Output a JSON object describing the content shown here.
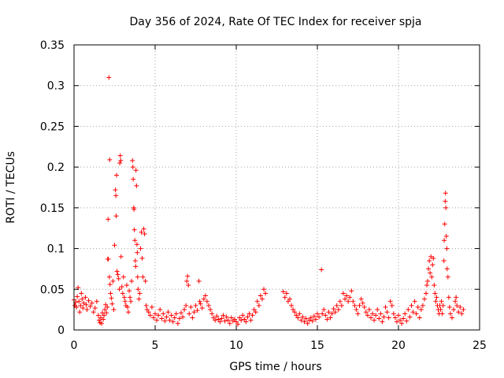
{
  "chart_data": {
    "type": "scatter",
    "title": "Day 356 of 2024, Rate Of TEC Index for receiver spja",
    "xlabel": "GPS time / hours",
    "ylabel": "ROTI / TECUs",
    "xlim": [
      0,
      25
    ],
    "ylim": [
      0,
      0.35
    ],
    "xticks": [
      0,
      5,
      10,
      15,
      20,
      25
    ],
    "xtick_labels": [
      "0",
      "5",
      "10",
      "15",
      "20",
      "25"
    ],
    "yticks": [
      0,
      0.05,
      0.1,
      0.15,
      0.2,
      0.25,
      0.3,
      0.35
    ],
    "ytick_labels": [
      "0",
      "0.05",
      "0.1",
      "0.15",
      "0.2",
      "0.25",
      "0.3",
      "0.35"
    ],
    "grid": true,
    "marker": "+",
    "series_color": "#ff0000",
    "series": [
      {
        "name": "ROTI",
        "points": [
          [
            0.0,
            0.037
          ],
          [
            0.05,
            0.03
          ],
          [
            0.1,
            0.034
          ],
          [
            0.15,
            0.028
          ],
          [
            0.2,
            0.041
          ],
          [
            0.25,
            0.052
          ],
          [
            0.3,
            0.035
          ],
          [
            0.35,
            0.022
          ],
          [
            0.4,
            0.03
          ],
          [
            0.45,
            0.045
          ],
          [
            0.5,
            0.038
          ],
          [
            0.55,
            0.027
          ],
          [
            0.6,
            0.033
          ],
          [
            0.7,
            0.04
          ],
          [
            0.75,
            0.031
          ],
          [
            0.8,
            0.025
          ],
          [
            0.9,
            0.036
          ],
          [
            1.0,
            0.029
          ],
          [
            1.1,
            0.033
          ],
          [
            1.2,
            0.022
          ],
          [
            1.3,
            0.027
          ],
          [
            1.4,
            0.035
          ],
          [
            1.5,
            0.018
          ],
          [
            1.55,
            0.012
          ],
          [
            1.6,
            0.009
          ],
          [
            1.65,
            0.015
          ],
          [
            1.7,
            0.008
          ],
          [
            1.75,
            0.021
          ],
          [
            1.8,
            0.013
          ],
          [
            1.85,
            0.018
          ],
          [
            1.9,
            0.025
          ],
          [
            1.95,
            0.031
          ],
          [
            2.0,
            0.021
          ],
          [
            2.05,
            0.028
          ],
          [
            2.08,
            0.087
          ],
          [
            2.1,
            0.136
          ],
          [
            2.12,
            0.087
          ],
          [
            2.15,
            0.31
          ],
          [
            2.18,
            0.065
          ],
          [
            2.2,
            0.209
          ],
          [
            2.22,
            0.056
          ],
          [
            2.25,
            0.045
          ],
          [
            2.3,
            0.039
          ],
          [
            2.35,
            0.032
          ],
          [
            2.4,
            0.06
          ],
          [
            2.45,
            0.025
          ],
          [
            2.5,
            0.104
          ],
          [
            2.55,
            0.172
          ],
          [
            2.58,
            0.165
          ],
          [
            2.6,
            0.14
          ],
          [
            2.62,
            0.19
          ],
          [
            2.65,
            0.072
          ],
          [
            2.7,
            0.068
          ],
          [
            2.75,
            0.063
          ],
          [
            2.8,
            0.05
          ],
          [
            2.82,
            0.205
          ],
          [
            2.85,
            0.214
          ],
          [
            2.88,
            0.208
          ],
          [
            2.9,
            0.09
          ],
          [
            2.95,
            0.053
          ],
          [
            3.0,
            0.045
          ],
          [
            3.05,
            0.065
          ],
          [
            3.1,
            0.04
          ],
          [
            3.15,
            0.035
          ],
          [
            3.2,
            0.03
          ],
          [
            3.25,
            0.055
          ],
          [
            3.3,
            0.028
          ],
          [
            3.35,
            0.022
          ],
          [
            3.4,
            0.048
          ],
          [
            3.45,
            0.04
          ],
          [
            3.5,
            0.035
          ],
          [
            3.55,
            0.06
          ],
          [
            3.6,
            0.208
          ],
          [
            3.63,
            0.2
          ],
          [
            3.65,
            0.185
          ],
          [
            3.68,
            0.15
          ],
          [
            3.7,
            0.148
          ],
          [
            3.72,
            0.123
          ],
          [
            3.75,
            0.11
          ],
          [
            3.78,
            0.085
          ],
          [
            3.8,
            0.078
          ],
          [
            3.82,
            0.196
          ],
          [
            3.85,
            0.177
          ],
          [
            3.88,
            0.105
          ],
          [
            3.9,
            0.095
          ],
          [
            3.92,
            0.065
          ],
          [
            3.95,
            0.05
          ],
          [
            4.0,
            0.038
          ],
          [
            4.05,
            0.045
          ],
          [
            4.1,
            0.1
          ],
          [
            4.15,
            0.12
          ],
          [
            4.2,
            0.088
          ],
          [
            4.25,
            0.065
          ],
          [
            4.3,
            0.124
          ],
          [
            4.35,
            0.118
          ],
          [
            4.4,
            0.06
          ],
          [
            4.45,
            0.03
          ],
          [
            4.5,
            0.025
          ],
          [
            4.6,
            0.022
          ],
          [
            4.7,
            0.018
          ],
          [
            4.8,
            0.028
          ],
          [
            4.9,
            0.015
          ],
          [
            5.0,
            0.02
          ],
          [
            5.1,
            0.012
          ],
          [
            5.2,
            0.018
          ],
          [
            5.3,
            0.025
          ],
          [
            5.4,
            0.014
          ],
          [
            5.5,
            0.02
          ],
          [
            5.6,
            0.011
          ],
          [
            5.7,
            0.016
          ],
          [
            5.8,
            0.022
          ],
          [
            5.9,
            0.012
          ],
          [
            6.0,
            0.018
          ],
          [
            6.1,
            0.01
          ],
          [
            6.2,
            0.015
          ],
          [
            6.3,
            0.02
          ],
          [
            6.4,
            0.008
          ],
          [
            6.5,
            0.014
          ],
          [
            6.6,
            0.021
          ],
          [
            6.7,
            0.016
          ],
          [
            6.8,
            0.025
          ],
          [
            6.9,
            0.03
          ],
          [
            6.95,
            0.06
          ],
          [
            7.0,
            0.066
          ],
          [
            7.05,
            0.055
          ],
          [
            7.1,
            0.02
          ],
          [
            7.2,
            0.028
          ],
          [
            7.3,
            0.015
          ],
          [
            7.4,
            0.022
          ],
          [
            7.5,
            0.03
          ],
          [
            7.6,
            0.024
          ],
          [
            7.7,
            0.06
          ],
          [
            7.75,
            0.035
          ],
          [
            7.8,
            0.032
          ],
          [
            7.9,
            0.027
          ],
          [
            8.0,
            0.038
          ],
          [
            8.1,
            0.042
          ],
          [
            8.2,
            0.035
          ],
          [
            8.3,
            0.03
          ],
          [
            8.4,
            0.025
          ],
          [
            8.5,
            0.02
          ],
          [
            8.6,
            0.015
          ],
          [
            8.7,
            0.012
          ],
          [
            8.8,
            0.017
          ],
          [
            8.9,
            0.013
          ],
          [
            9.0,
            0.01
          ],
          [
            9.1,
            0.014
          ],
          [
            9.2,
            0.018
          ],
          [
            9.3,
            0.011
          ],
          [
            9.4,
            0.016
          ],
          [
            9.5,
            0.012
          ],
          [
            9.6,
            0.008
          ],
          [
            9.7,
            0.015
          ],
          [
            9.8,
            0.011
          ],
          [
            9.9,
            0.013
          ],
          [
            10.0,
            0.01
          ],
          [
            10.1,
            0.007
          ],
          [
            10.2,
            0.015
          ],
          [
            10.3,
            0.012
          ],
          [
            10.4,
            0.018
          ],
          [
            10.5,
            0.013
          ],
          [
            10.6,
            0.01
          ],
          [
            10.7,
            0.016
          ],
          [
            10.8,
            0.02
          ],
          [
            10.9,
            0.012
          ],
          [
            11.0,
            0.018
          ],
          [
            11.1,
            0.025
          ],
          [
            11.2,
            0.022
          ],
          [
            11.3,
            0.035
          ],
          [
            11.4,
            0.03
          ],
          [
            11.5,
            0.042
          ],
          [
            11.6,
            0.038
          ],
          [
            11.7,
            0.05
          ],
          [
            11.8,
            0.045
          ],
          [
            12.9,
            0.047
          ],
          [
            13.0,
            0.04
          ],
          [
            13.1,
            0.045
          ],
          [
            13.2,
            0.035
          ],
          [
            13.3,
            0.038
          ],
          [
            13.4,
            0.03
          ],
          [
            13.5,
            0.025
          ],
          [
            13.6,
            0.022
          ],
          [
            13.7,
            0.018
          ],
          [
            13.8,
            0.015
          ],
          [
            13.9,
            0.02
          ],
          [
            14.0,
            0.012
          ],
          [
            14.1,
            0.016
          ],
          [
            14.2,
            0.01
          ],
          [
            14.3,
            0.014
          ],
          [
            14.4,
            0.008
          ],
          [
            14.5,
            0.012
          ],
          [
            14.6,
            0.015
          ],
          [
            14.7,
            0.011
          ],
          [
            14.8,
            0.017
          ],
          [
            14.9,
            0.013
          ],
          [
            15.0,
            0.02
          ],
          [
            15.1,
            0.016
          ],
          [
            15.25,
            0.074
          ],
          [
            15.3,
            0.02
          ],
          [
            15.4,
            0.025
          ],
          [
            15.5,
            0.018
          ],
          [
            15.6,
            0.013
          ],
          [
            15.7,
            0.022
          ],
          [
            15.8,
            0.015
          ],
          [
            15.9,
            0.02
          ],
          [
            16.0,
            0.026
          ],
          [
            16.1,
            0.022
          ],
          [
            16.2,
            0.03
          ],
          [
            16.3,
            0.025
          ],
          [
            16.4,
            0.035
          ],
          [
            16.5,
            0.03
          ],
          [
            16.6,
            0.045
          ],
          [
            16.7,
            0.038
          ],
          [
            16.8,
            0.042
          ],
          [
            16.9,
            0.035
          ],
          [
            17.0,
            0.04
          ],
          [
            17.1,
            0.048
          ],
          [
            17.2,
            0.035
          ],
          [
            17.3,
            0.03
          ],
          [
            17.4,
            0.025
          ],
          [
            17.5,
            0.02
          ],
          [
            17.6,
            0.03
          ],
          [
            17.7,
            0.038
          ],
          [
            17.8,
            0.033
          ],
          [
            17.9,
            0.028
          ],
          [
            18.0,
            0.022
          ],
          [
            18.1,
            0.018
          ],
          [
            18.2,
            0.025
          ],
          [
            18.3,
            0.015
          ],
          [
            18.4,
            0.02
          ],
          [
            18.5,
            0.012
          ],
          [
            18.6,
            0.018
          ],
          [
            18.7,
            0.025
          ],
          [
            18.8,
            0.014
          ],
          [
            18.9,
            0.02
          ],
          [
            19.0,
            0.01
          ],
          [
            19.1,
            0.016
          ],
          [
            19.2,
            0.028
          ],
          [
            19.3,
            0.022
          ],
          [
            19.4,
            0.015
          ],
          [
            19.5,
            0.035
          ],
          [
            19.6,
            0.03
          ],
          [
            19.7,
            0.02
          ],
          [
            19.8,
            0.015
          ],
          [
            19.9,
            0.01
          ],
          [
            20.0,
            0.018
          ],
          [
            20.1,
            0.012
          ],
          [
            20.2,
            0.008
          ],
          [
            20.3,
            0.014
          ],
          [
            20.4,
            0.02
          ],
          [
            20.5,
            0.011
          ],
          [
            20.6,
            0.025
          ],
          [
            20.7,
            0.016
          ],
          [
            20.8,
            0.03
          ],
          [
            20.9,
            0.022
          ],
          [
            21.0,
            0.035
          ],
          [
            21.1,
            0.02
          ],
          [
            21.2,
            0.028
          ],
          [
            21.3,
            0.015
          ],
          [
            21.4,
            0.025
          ],
          [
            21.5,
            0.03
          ],
          [
            21.6,
            0.038
          ],
          [
            21.7,
            0.045
          ],
          [
            21.75,
            0.055
          ],
          [
            21.8,
            0.06
          ],
          [
            21.85,
            0.075
          ],
          [
            21.9,
            0.085
          ],
          [
            21.95,
            0.07
          ],
          [
            22.0,
            0.09
          ],
          [
            22.05,
            0.065
          ],
          [
            22.1,
            0.08
          ],
          [
            22.15,
            0.088
          ],
          [
            22.2,
            0.055
          ],
          [
            22.25,
            0.045
          ],
          [
            22.3,
            0.035
          ],
          [
            22.35,
            0.04
          ],
          [
            22.4,
            0.03
          ],
          [
            22.45,
            0.025
          ],
          [
            22.5,
            0.02
          ],
          [
            22.55,
            0.03
          ],
          [
            22.6,
            0.025
          ],
          [
            22.65,
            0.035
          ],
          [
            22.7,
            0.02
          ],
          [
            22.75,
            0.03
          ],
          [
            22.8,
            0.085
          ],
          [
            22.82,
            0.11
          ],
          [
            22.85,
            0.13
          ],
          [
            22.88,
            0.158
          ],
          [
            22.9,
            0.168
          ],
          [
            22.92,
            0.15
          ],
          [
            22.95,
            0.115
          ],
          [
            22.98,
            0.1
          ],
          [
            23.0,
            0.075
          ],
          [
            23.05,
            0.065
          ],
          [
            23.1,
            0.04
          ],
          [
            23.15,
            0.028
          ],
          [
            23.2,
            0.02
          ],
          [
            23.3,
            0.015
          ],
          [
            23.4,
            0.025
          ],
          [
            23.5,
            0.035
          ],
          [
            23.55,
            0.04
          ],
          [
            23.6,
            0.03
          ],
          [
            23.7,
            0.022
          ],
          [
            23.8,
            0.028
          ],
          [
            23.9,
            0.02
          ],
          [
            24.0,
            0.025
          ]
        ]
      }
    ]
  }
}
